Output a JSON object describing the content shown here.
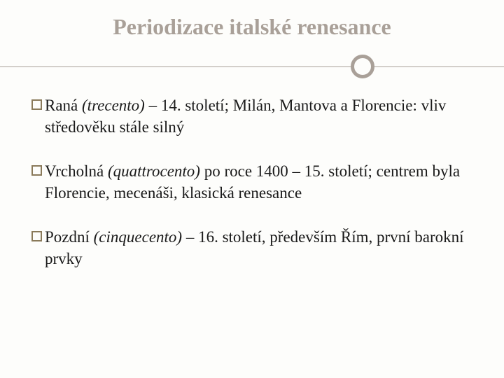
{
  "title": "Periodizace italské renesance",
  "title_color": "#a9a098",
  "title_fontsize": 32,
  "divider": {
    "line_color": "#a9a098",
    "circle_border_color": "#a9a098",
    "circle_border_width": 5,
    "circle_diameter": 34,
    "circle_position_pct": 72
  },
  "bullet_box": {
    "border_color": "#8a7a5a",
    "fill": "#fdfdfb",
    "size": 15
  },
  "body_fontsize": 23,
  "body_color": "#1a1a1a",
  "background_color": "#fdfdfb",
  "bullets": [
    {
      "lead": "Raná ",
      "italic": "(trecento)",
      "rest": " – 14. století; Milán, Mantova a Florencie: vliv středověku stále silný"
    },
    {
      "lead": "Vrcholná ",
      "italic": "(quattrocento)",
      "rest": " po roce 1400 – 15. století; centrem byla Florencie, mecenáši, klasická renesance"
    },
    {
      "lead": "Pozdní ",
      "italic": "(cinquecento)",
      "rest": " – 16. století, především Řím, první barokní prvky"
    }
  ]
}
